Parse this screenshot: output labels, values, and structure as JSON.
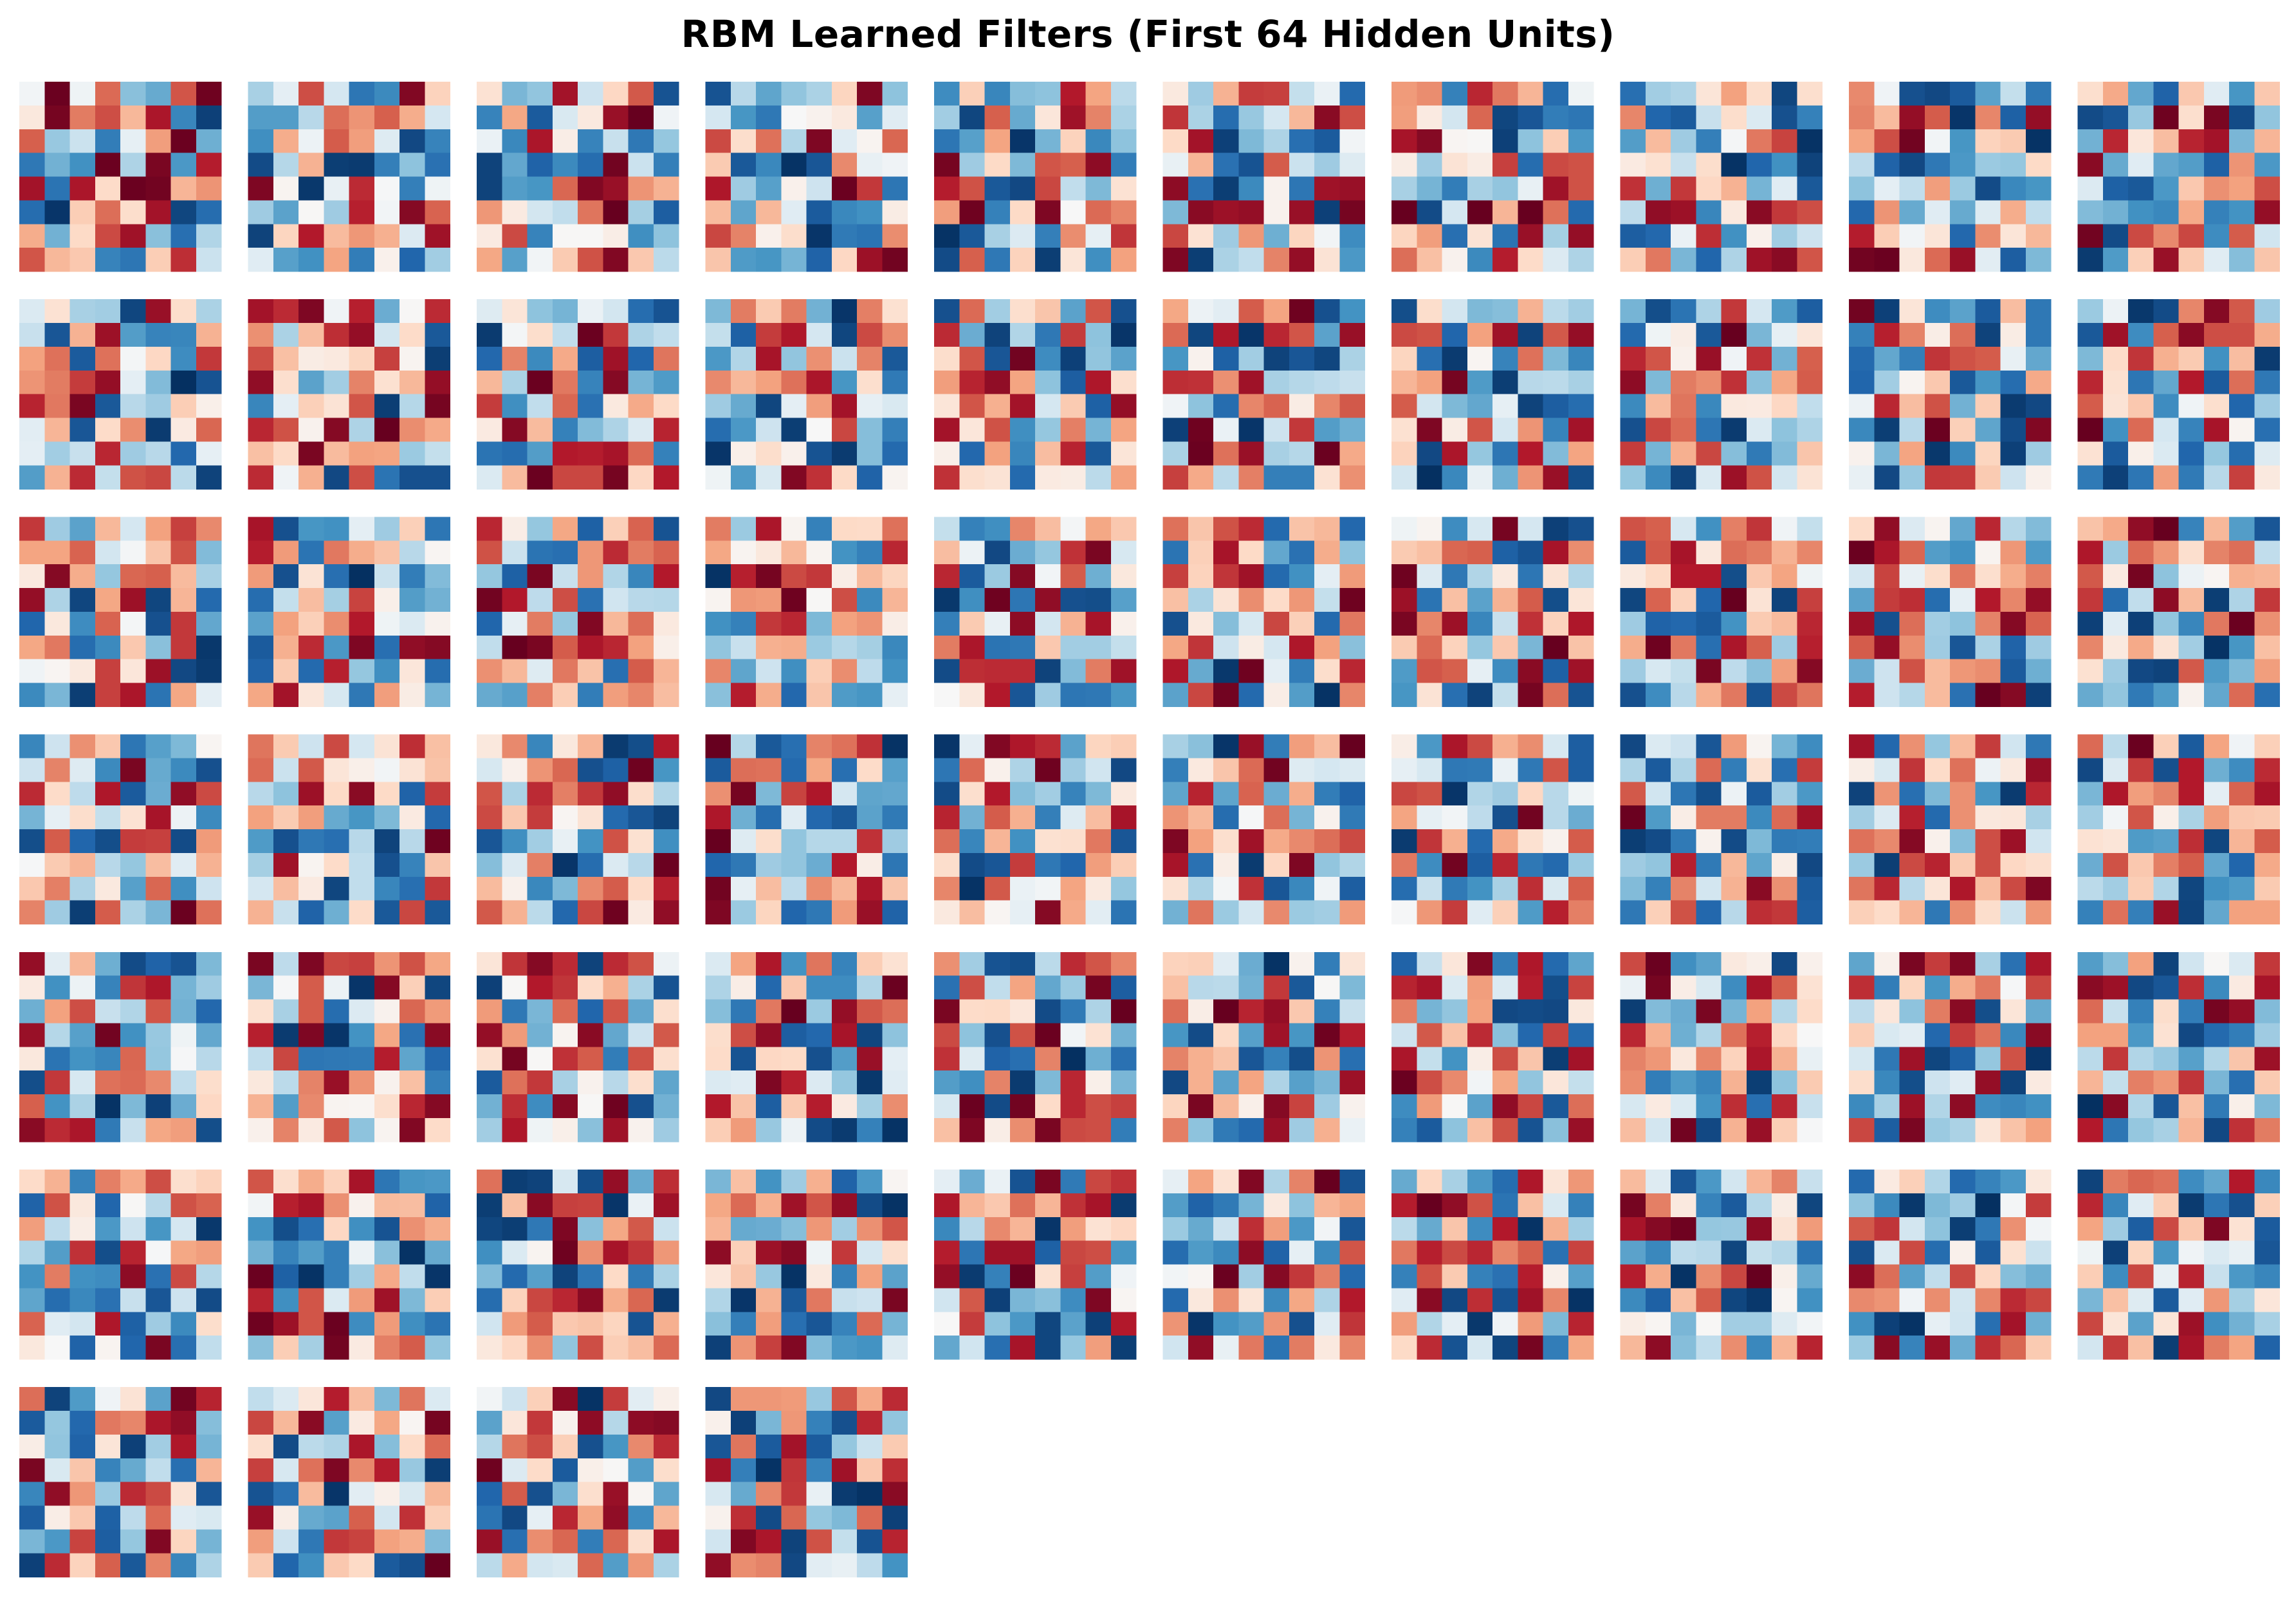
{
  "chart_data": {
    "type": "heatmap",
    "title": "RBM Learned Filters (First 64 Hidden Units)",
    "colormap": "RdBu_r",
    "value_range": [
      -1,
      1
    ],
    "panel_count": 64,
    "panel_columns": 10,
    "axes": "off",
    "filter_rows": 8,
    "filter_cols": 8,
    "note_values": "weights estimated on a -1..1 scale; each filter is an 8x8 grid",
    "filters": []
  }
}
